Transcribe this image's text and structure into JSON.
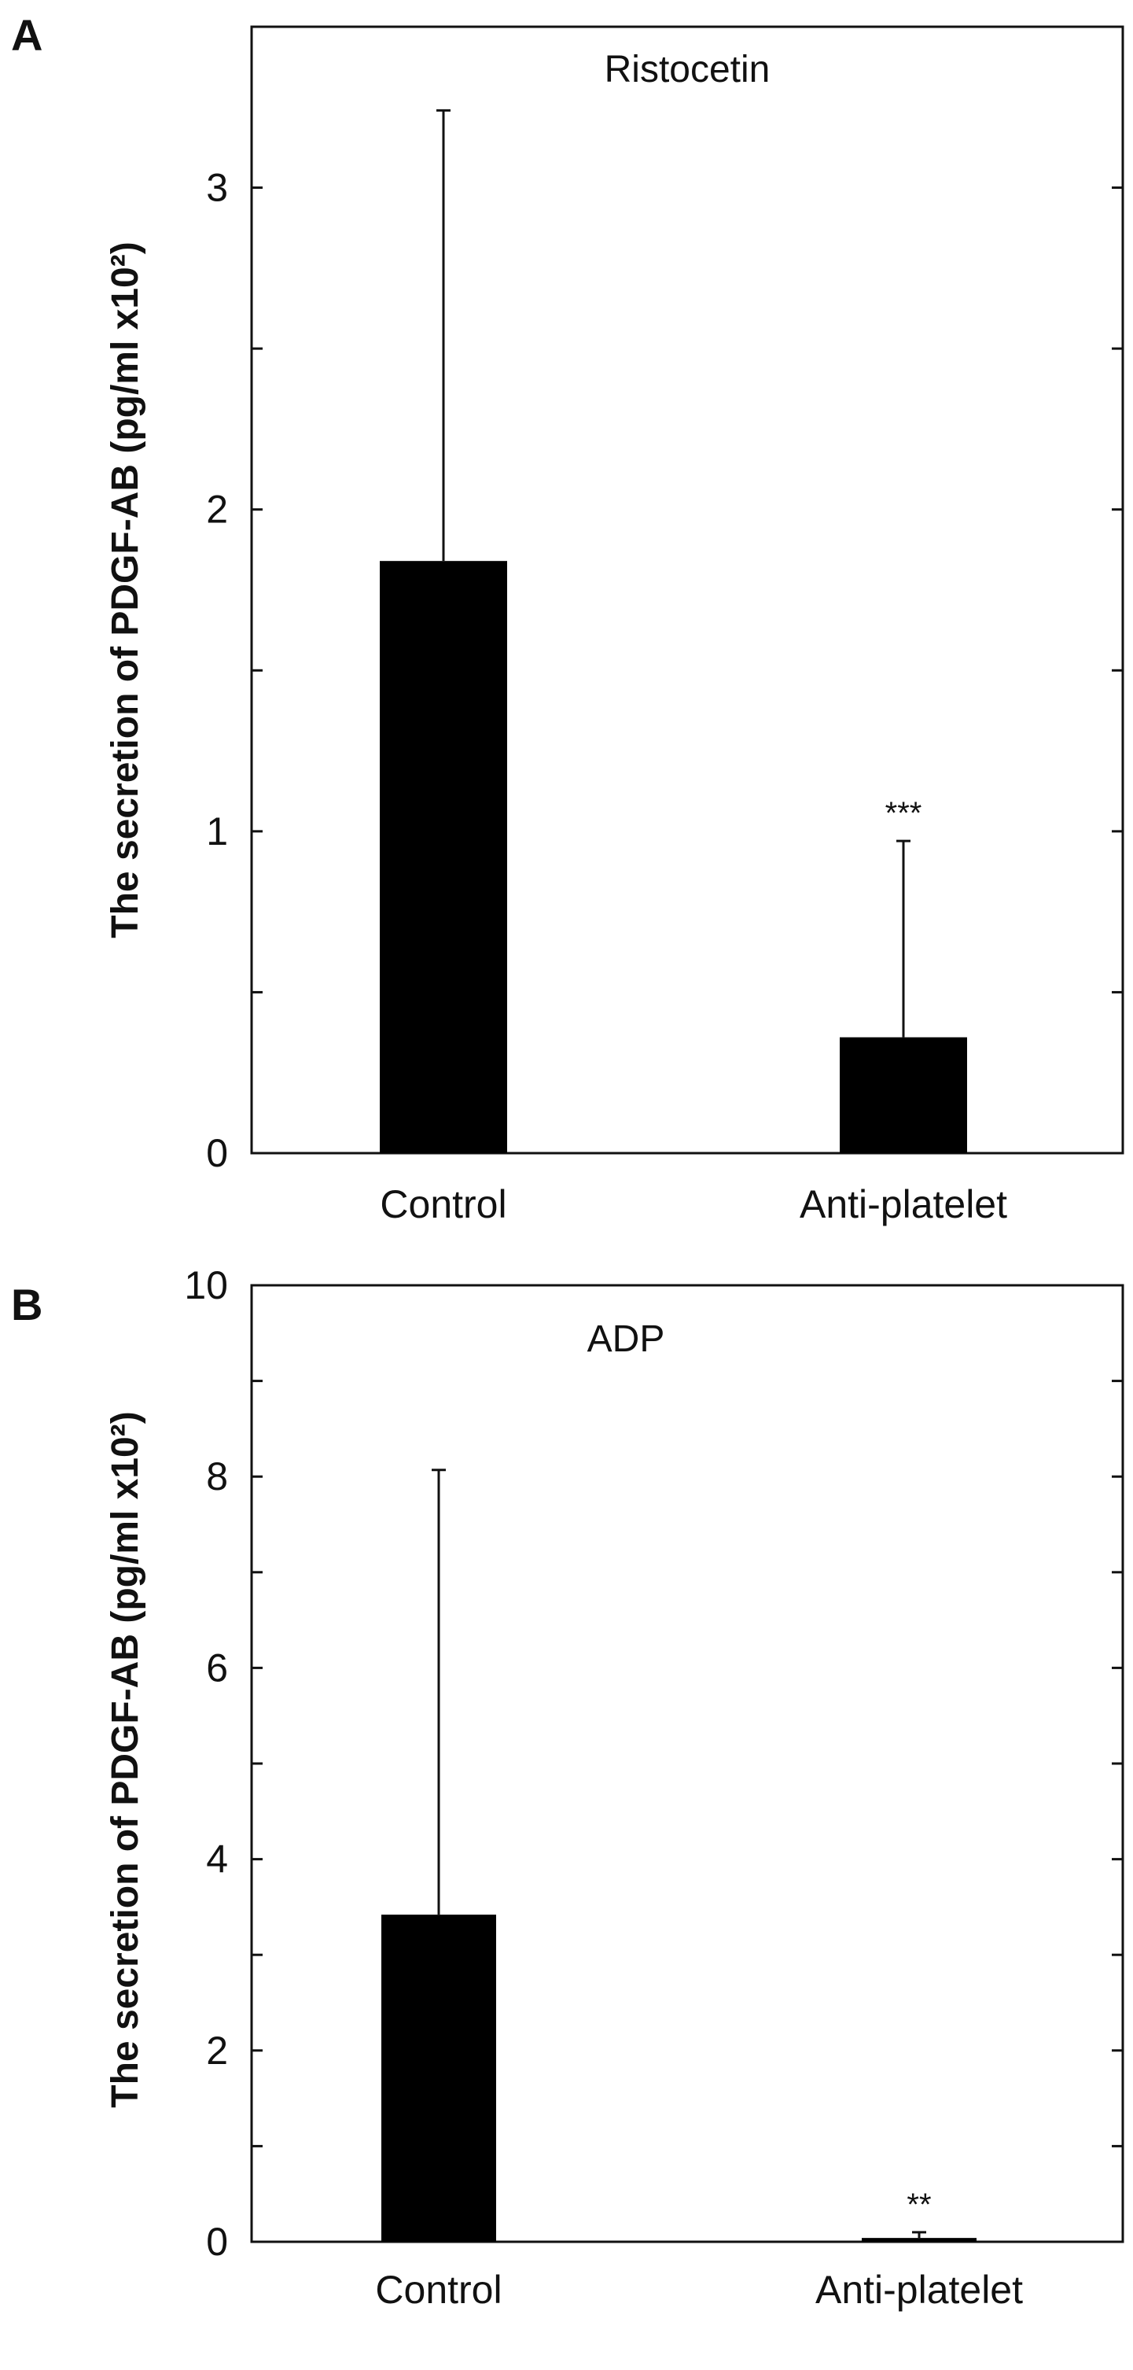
{
  "chart_data": [
    {
      "type": "bar",
      "panel": "A",
      "title": "Ristocetin",
      "xlabel": "",
      "ylabel": "The secretion of PDGF-AB (pg/ml x10²)",
      "ylim": [
        0,
        3.5
      ],
      "yticks": [
        0,
        1,
        2,
        3
      ],
      "categories": [
        "Control",
        "Anti-platelet"
      ],
      "values": [
        1.84,
        0.36
      ],
      "error": [
        1.4,
        0.61
      ],
      "annotations": [
        "",
        "***"
      ],
      "grid": false,
      "bar_color": "#000000"
    },
    {
      "type": "bar",
      "panel": "B",
      "title": "ADP",
      "xlabel": "",
      "ylabel": "The secretion of PDGF-AB (pg/ml x10²)",
      "ylim": [
        0,
        10
      ],
      "yticks": [
        0,
        2,
        4,
        6,
        8,
        10
      ],
      "categories": [
        "Control",
        "Anti-platelet"
      ],
      "values": [
        3.42,
        0.04
      ],
      "error": [
        4.65,
        0.06
      ],
      "annotations": [
        "",
        "**"
      ],
      "grid": false,
      "bar_color": "#000000"
    }
  ]
}
